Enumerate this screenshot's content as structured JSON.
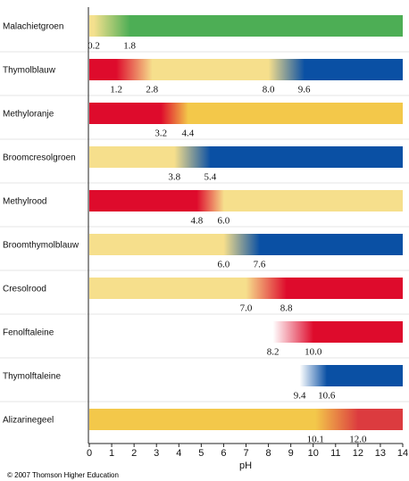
{
  "chart_data": {
    "type": "gradient-bar",
    "x_label": "pH",
    "footer": "© 2007 Thomson Higher Education",
    "xlim": [
      0,
      14
    ],
    "xticks": [
      0,
      1,
      2,
      3,
      4,
      5,
      6,
      7,
      8,
      9,
      10,
      11,
      12,
      13,
      14
    ],
    "series": [
      {
        "name": "Malachietgroen",
        "values": [
          0.2,
          1.8
        ],
        "value_labels": [
          "0.2",
          "1.8"
        ],
        "colors": [
          "#f4e08e",
          "#4dae55"
        ]
      },
      {
        "name": "Thymolblauw",
        "values": [
          1.2,
          2.8,
          8.0,
          9.6
        ],
        "value_labels": [
          "1.2",
          "2.8",
          "8.0",
          "9.6"
        ],
        "colors": [
          "#de0b2c",
          "#f6df8c",
          "#0a50a4"
        ]
      },
      {
        "name": "Methyloranje",
        "values": [
          3.2,
          4.4
        ],
        "value_labels": [
          "3.2",
          "4.4"
        ],
        "colors": [
          "#de0b2c",
          "#f3c84a"
        ]
      },
      {
        "name": "Broomcresolgroen",
        "values": [
          3.8,
          5.4
        ],
        "value_labels": [
          "3.8",
          "5.4"
        ],
        "colors": [
          "#f6df8c",
          "#0a50a4"
        ]
      },
      {
        "name": "Methylrood",
        "values": [
          4.8,
          6.0
        ],
        "value_labels": [
          "4.8",
          "6.0"
        ],
        "colors": [
          "#de0b2c",
          "#f6df8c"
        ]
      },
      {
        "name": "Broomthymolblauw",
        "values": [
          6.0,
          7.6
        ],
        "value_labels": [
          "6.0",
          "7.6"
        ],
        "colors": [
          "#f6df8c",
          "#0a50a4"
        ]
      },
      {
        "name": "Cresolrood",
        "values": [
          7.0,
          8.8
        ],
        "value_labels": [
          "7.0",
          "8.8"
        ],
        "colors": [
          "#f6df8c",
          "#de0b2c"
        ]
      },
      {
        "name": "Fenolftaleine",
        "values": [
          8.2,
          10.0
        ],
        "value_labels": [
          "8.2",
          "10.0"
        ],
        "colors": [
          "#ffffff",
          "#de0b2c"
        ]
      },
      {
        "name": "Thymolftaleine",
        "values": [
          9.4,
          10.6
        ],
        "value_labels": [
          "9.4",
          "10.6"
        ],
        "colors": [
          "#ffffff",
          "#0a50a4"
        ]
      },
      {
        "name": "Alizarinegeel",
        "values": [
          10.1,
          12.0
        ],
        "value_labels": [
          "10.1",
          "12.0"
        ],
        "colors": [
          "#f3c84a",
          "#dc3b3f"
        ]
      }
    ]
  }
}
